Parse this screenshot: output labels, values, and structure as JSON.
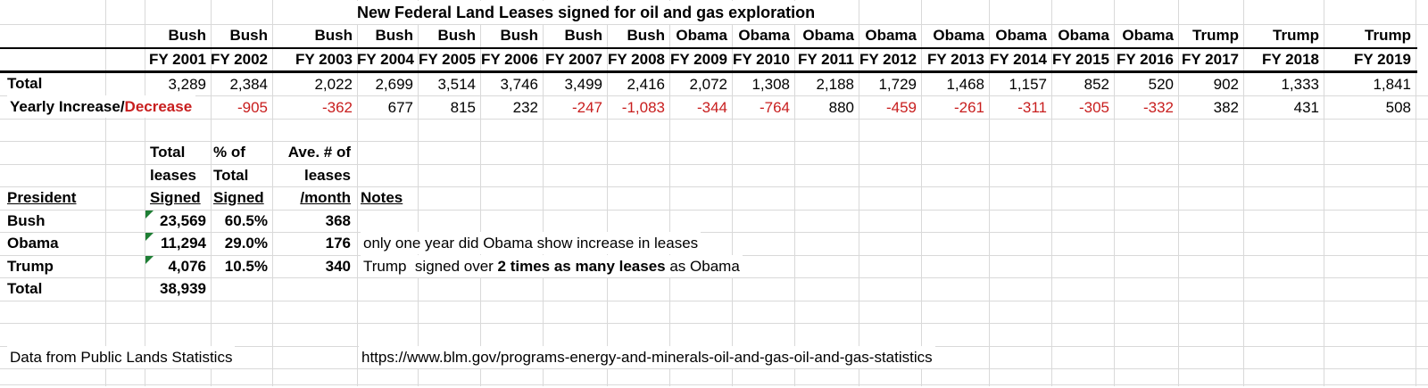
{
  "title": "New Federal Land Leases signed for oil and gas exploration",
  "colors": {
    "negative": "#c81e1e",
    "indicator": "#1e7e34",
    "grid": "#d9d9d9",
    "border": "#000000"
  },
  "icons": {
    "cell_flag": "excel-error-indicator-triangle"
  },
  "top_table": {
    "row_labels": {
      "total": "Total",
      "yearly_prefix": "Yearly Increase/",
      "yearly_suffix": "Decrease"
    },
    "years": [
      {
        "president": "Bush",
        "fy": "FY 2001",
        "total": "3,289",
        "change": ""
      },
      {
        "president": "Bush",
        "fy": "FY 2002",
        "total": "2,384",
        "change": "-905"
      },
      {
        "president": "Bush",
        "fy": "FY 2003",
        "total": "2,022",
        "change": "-362"
      },
      {
        "president": "Bush",
        "fy": "FY 2004",
        "total": "2,699",
        "change": "677"
      },
      {
        "president": "Bush",
        "fy": "FY 2005",
        "total": "3,514",
        "change": "815"
      },
      {
        "president": "Bush",
        "fy": "FY 2006",
        "total": "3,746",
        "change": "232"
      },
      {
        "president": "Bush",
        "fy": "FY 2007",
        "total": "3,499",
        "change": "-247"
      },
      {
        "president": "Bush",
        "fy": "FY 2008",
        "total": "2,416",
        "change": "-1,083"
      },
      {
        "president": "Obama",
        "fy": "FY 2009",
        "total": "2,072",
        "change": "-344"
      },
      {
        "president": "Obama",
        "fy": "FY 2010",
        "total": "1,308",
        "change": "-764"
      },
      {
        "president": "Obama",
        "fy": "FY 2011",
        "total": "2,188",
        "change": "880"
      },
      {
        "president": "Obama",
        "fy": "FY 2012",
        "total": "1,729",
        "change": "-459"
      },
      {
        "president": "Obama",
        "fy": "FY 2013",
        "total": "1,468",
        "change": "-261"
      },
      {
        "president": "Obama",
        "fy": "FY 2014",
        "total": "1,157",
        "change": "-311"
      },
      {
        "president": "Obama",
        "fy": "FY 2015",
        "total": "852",
        "change": "-305"
      },
      {
        "president": "Obama",
        "fy": "FY 2016",
        "total": "520",
        "change": "-332"
      },
      {
        "president": "Trump",
        "fy": "FY 2017",
        "total": "902",
        "change": "382"
      },
      {
        "president": "Trump",
        "fy": "FY 2018",
        "total": "1,333",
        "change": "431"
      },
      {
        "president": "Trump",
        "fy": "FY 2019",
        "total": "1,841",
        "change": "508"
      }
    ]
  },
  "summary_table": {
    "headers": {
      "president": "President",
      "col1_lines": [
        "Total",
        "leases",
        "Signed"
      ],
      "col2_lines": [
        "% of",
        "Total",
        "Signed"
      ],
      "col3_lines": [
        "Ave. # of",
        "leases",
        "/month"
      ],
      "notes": "Notes"
    },
    "rows": [
      {
        "president": "Bush",
        "total_signed": "23,569",
        "pct": "60.5%",
        "per_month": "368",
        "note": ""
      },
      {
        "president": "Obama",
        "total_signed": "11,294",
        "pct": "29.0%",
        "per_month": "176",
        "note": "only one year did Obama show increase in leases"
      },
      {
        "president": "Trump",
        "total_signed": "4,076",
        "pct": "10.5%",
        "per_month": "340",
        "note_prefix": "Trump  signed over ",
        "note_bold": "2 times as many leases",
        "note_suffix": " as Obama"
      }
    ],
    "total_row": {
      "label": "Total",
      "value": "38,939"
    }
  },
  "footer": {
    "source": "Data from Public Lands Statistics",
    "url": "https://www.blm.gov/programs-energy-and-minerals-oil-and-gas-oil-and-gas-statistics"
  }
}
